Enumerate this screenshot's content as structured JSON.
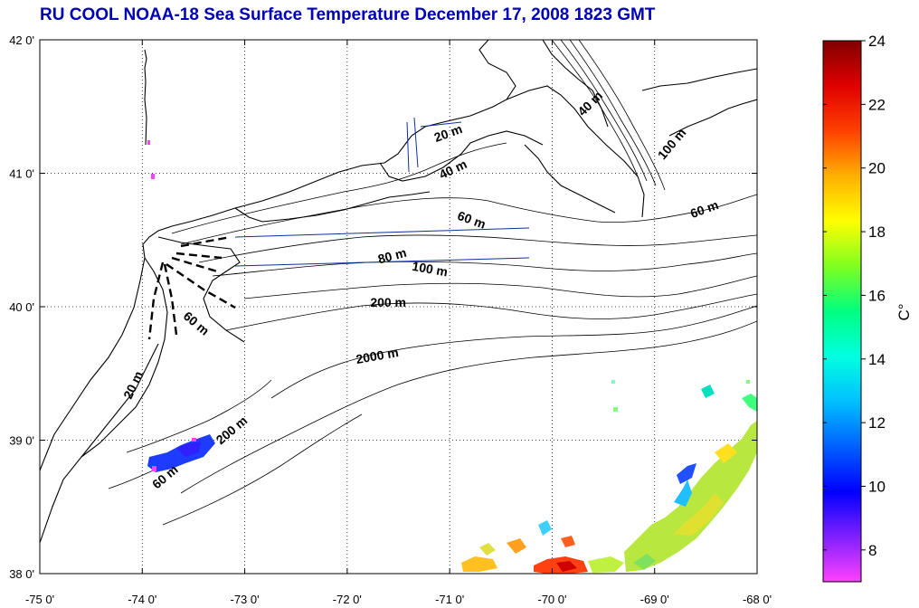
{
  "title": "RU COOL  NOAA-18 Sea Surface Temperature December 17, 2008 1823 GMT",
  "map": {
    "lon_range": [
      -75,
      -68
    ],
    "lat_range": [
      38,
      42
    ],
    "lon_labels": [
      {
        "value": -75,
        "label": "-75 0'"
      },
      {
        "value": -74,
        "label": "-74 0'"
      },
      {
        "value": -73,
        "label": "-73 0'"
      },
      {
        "value": -72,
        "label": "-72 0'"
      },
      {
        "value": -71,
        "label": "-71 0'"
      },
      {
        "value": -70,
        "label": "-70 0'"
      },
      {
        "value": -69,
        "label": "-69 0'"
      },
      {
        "value": -68,
        "label": "-68 0'"
      }
    ],
    "lat_labels": [
      {
        "value": 42,
        "label": "42 0'"
      },
      {
        "value": 41,
        "label": "41 0'"
      },
      {
        "value": 40,
        "label": "40 0'"
      },
      {
        "value": 39,
        "label": "39 0'"
      },
      {
        "value": 38,
        "label": "38 0'"
      }
    ],
    "gridlines": true,
    "contour_labels": [
      {
        "text": "20 m",
        "lon": -71.0,
        "lat": 41.27,
        "angle": -20
      },
      {
        "text": "40 m",
        "lon": -70.95,
        "lat": 41.0,
        "angle": -25
      },
      {
        "text": "40 m",
        "lon": -69.6,
        "lat": 41.5,
        "angle": -45
      },
      {
        "text": "100 m",
        "lon": -68.8,
        "lat": 41.2,
        "angle": -50
      },
      {
        "text": "60 m",
        "lon": -70.8,
        "lat": 40.62,
        "angle": 20
      },
      {
        "text": "60 m",
        "lon": -68.5,
        "lat": 40.7,
        "angle": -20
      },
      {
        "text": "80 m",
        "lon": -71.55,
        "lat": 40.35,
        "angle": -15
      },
      {
        "text": "100 m",
        "lon": -71.2,
        "lat": 40.25,
        "angle": 10
      },
      {
        "text": "200 m",
        "lon": -71.6,
        "lat": 40.0,
        "angle": 0
      },
      {
        "text": "60 m",
        "lon": -73.5,
        "lat": 39.85,
        "angle": 40
      },
      {
        "text": "2000 m",
        "lon": -71.7,
        "lat": 39.6,
        "angle": -10
      },
      {
        "text": "20 m",
        "lon": -74.05,
        "lat": 39.4,
        "angle": -65
      },
      {
        "text": "200 m",
        "lon": -73.1,
        "lat": 39.05,
        "angle": -40
      },
      {
        "text": "60 m",
        "lon": -73.75,
        "lat": 38.7,
        "angle": -40
      }
    ]
  },
  "colorbar": {
    "min": 7,
    "max": 24,
    "ticks": [
      8,
      10,
      12,
      14,
      16,
      18,
      20,
      22,
      24
    ],
    "unit_label": "C°",
    "colors": [
      "#ff40ff",
      "#8020ff",
      "#0000ff",
      "#0060ff",
      "#00c0ff",
      "#00ffe0",
      "#00ff80",
      "#80ff20",
      "#ffff00",
      "#ffb000",
      "#ff4000",
      "#e00000",
      "#800000"
    ]
  }
}
